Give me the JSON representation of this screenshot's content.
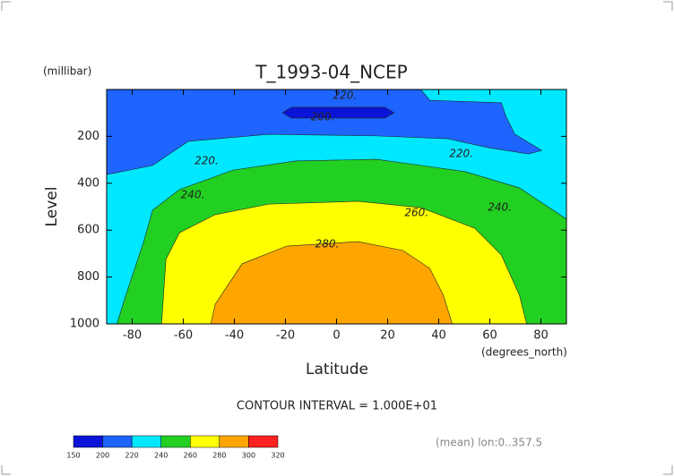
{
  "chart_data": {
    "type": "contour",
    "title": "T_1993-04_NCEP",
    "y_unit": "(millibar)",
    "ylabel": "Level",
    "xlabel": "Latitude",
    "x_unit": "(degrees_north)",
    "note": "CONTOUR INTERVAL = 1.000E+01",
    "footnote": "(mean) lon:0..357.5",
    "xlim": [
      -90,
      90
    ],
    "xticks": [
      -80,
      -60,
      -40,
      -20,
      0,
      20,
      40,
      60,
      80
    ],
    "ylim": [
      1000,
      0
    ],
    "yticks": [
      200,
      400,
      600,
      800,
      1000
    ],
    "background": {
      "level": 220,
      "color": "#00e8ff"
    },
    "regions": [
      {
        "level": 200,
        "color": "#1e64ff",
        "lat": [
          -90,
          33.0,
          36.5,
          64.5,
          66.3,
          69.8,
          80.3,
          75.1,
          59.3,
          43.5,
          15.5,
          -26.5,
          -58.0,
          -72.0,
          -90
        ],
        "lev": [
          0,
          0,
          46,
          57,
          115,
          191,
          260,
          275,
          248,
          210,
          198,
          191,
          221,
          324,
          363
        ]
      },
      {
        "level": 150,
        "color": "#0a14d8",
        "lat": [
          -21.2,
          -17.7,
          19.0,
          22.5,
          19.0,
          -17.7
        ],
        "lev": [
          99,
          76,
          76,
          99,
          122,
          122
        ]
      },
      {
        "level": 240,
        "color": "#22d022",
        "lat": [
          -86.0,
          -82.5,
          -75.5,
          -72.0,
          -61.5,
          -40.5,
          -16.0,
          15.5,
          33.0,
          50.5,
          71.6,
          90,
          90
        ],
        "lev": [
          1000,
          878,
          649,
          515,
          427,
          344,
          305,
          298,
          324,
          351,
          420,
          553,
          1000
        ]
      },
      {
        "level": 260,
        "color": "#ffff00",
        "lat": [
          -68.5,
          -66.8,
          -61.5,
          -47.5,
          -26.5,
          8.5,
          33.0,
          54.1,
          64.5,
          71.6,
          74.4
        ],
        "lev": [
          1000,
          725,
          611,
          534,
          489,
          477,
          504,
          592,
          706,
          878,
          1000
        ]
      },
      {
        "level": 280,
        "color": "#ffa500",
        "lat": [
          -49.2,
          -47.5,
          -37.0,
          -19.5,
          8.5,
          26.0,
          36.5,
          41.8,
          45.3
        ],
        "lev": [
          1000,
          916,
          744,
          668,
          649,
          687,
          763,
          878,
          1000
        ]
      }
    ],
    "contour_labels": [
      {
        "value": 220,
        "label": "220.",
        "lat": 3.3,
        "lev": 27
      },
      {
        "value": 200,
        "label": "200.",
        "lat": -5.4,
        "lev": 118
      },
      {
        "value": 220,
        "label": "220.",
        "lat": -50.9,
        "lev": 305
      },
      {
        "value": 220,
        "label": "220.",
        "lat": 48.8,
        "lev": 275
      },
      {
        "value": 240,
        "label": "240.",
        "lat": -56.3,
        "lev": 450
      },
      {
        "value": 240,
        "label": "240.",
        "lat": 63.9,
        "lev": 504
      },
      {
        "value": 260,
        "label": "260.",
        "lat": 31.3,
        "lev": 527
      },
      {
        "value": 280,
        "label": "280.",
        "lat": -3.7,
        "lev": 660
      }
    ],
    "colorbar": {
      "levels": [
        150,
        200,
        220,
        240,
        260,
        280,
        300,
        320
      ],
      "colors": [
        "#0a14d8",
        "#1e64ff",
        "#00e8ff",
        "#22d022",
        "#ffff00",
        "#ffa500",
        "#ff2020"
      ]
    }
  }
}
